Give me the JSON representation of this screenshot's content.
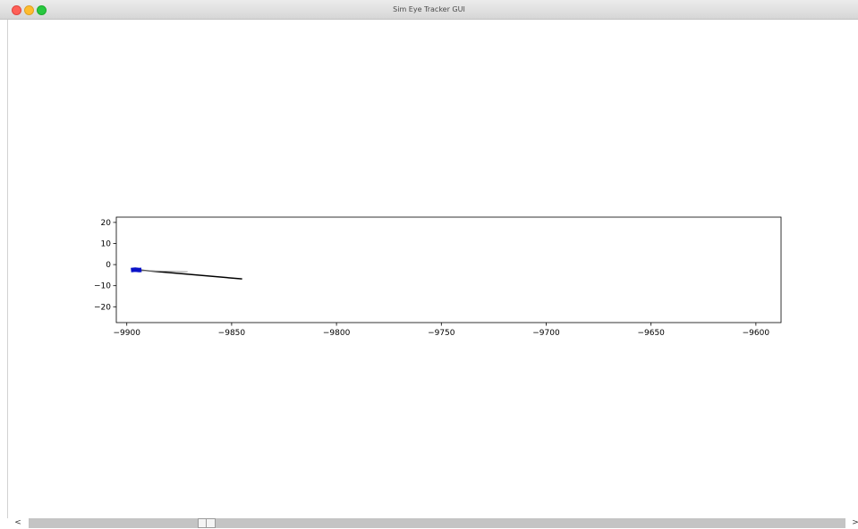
{
  "window": {
    "title": "Sim Eye Tracker GUI"
  },
  "chart_data": {
    "type": "line",
    "title": "",
    "xlabel": "",
    "ylabel": "",
    "xlim": [
      -9905,
      -9588
    ],
    "ylim": [
      -27.5,
      22.5
    ],
    "x_ticks": [
      -9900,
      -9850,
      -9800,
      -9750,
      -9700,
      -9650,
      -9600
    ],
    "x_tick_labels": [
      "−9900",
      "−9850",
      "−9800",
      "−9750",
      "−9700",
      "−9650",
      "−9600"
    ],
    "y_ticks": [
      20,
      10,
      0,
      -10,
      -20
    ],
    "y_tick_labels": [
      "20",
      "10",
      "0",
      "−10",
      "−20"
    ],
    "grid": false,
    "legend": "none",
    "series": [
      {
        "color": "#000000",
        "x": [
          -9897.5,
          -9845.0
        ],
        "y": [
          -2.3,
          -6.8
        ]
      },
      {
        "color": "#999999",
        "x": [
          -9895.0,
          -9871.0
        ],
        "y": [
          -2.8,
          -3.4
        ]
      },
      {
        "color": "#0a12c8",
        "x": [
          -9898.0,
          -9896.0,
          -9894.0,
          -9893.0
        ],
        "y": [
          -2.6,
          -2.4,
          -2.6,
          -2.5
        ]
      }
    ]
  },
  "scrollbar": {
    "left_arrow": "<",
    "right_arrow": ">",
    "position_fraction": 0.212
  }
}
